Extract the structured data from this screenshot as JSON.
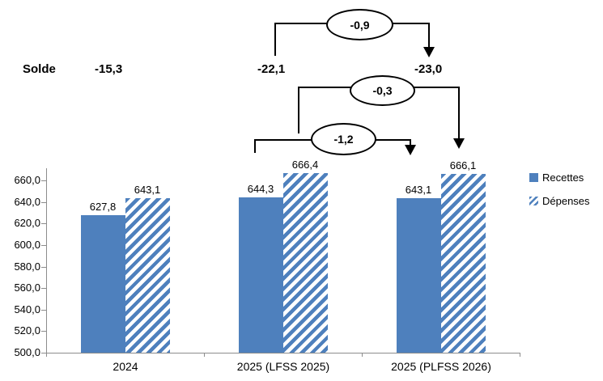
{
  "colors": {
    "bar_blue": "#4E80BD",
    "axis_gray": "#8C8C8C",
    "annotation_black": "#000000",
    "background": "#ffffff"
  },
  "solde_row": {
    "label": "Solde",
    "value_2024": "-15,3",
    "value_lfss_2025": "-22,1",
    "value_plfss_2026": "-23,0"
  },
  "annotations": {
    "solde_delta": "-0,9",
    "depenses_delta": "-0,3",
    "recettes_delta": "-1,2"
  },
  "chart_data": {
    "type": "bar",
    "title": "",
    "categories": [
      "2024",
      "2025 (LFSS 2025)",
      "2025 (PLFSS 2026)"
    ],
    "series": [
      {
        "name": "Recettes",
        "fill": "solid",
        "color": "#4E80BD",
        "values": [
          627.8,
          644.3,
          643.1
        ]
      },
      {
        "name": "Dépenses",
        "fill": "hatch",
        "color": "#4E80BD",
        "values": [
          643.1,
          666.4,
          666.1
        ]
      }
    ],
    "value_labels": [
      [
        "627,8",
        "644,3",
        "643,1"
      ],
      [
        "643,1",
        "666,4",
        "666,1"
      ]
    ],
    "ylim": [
      500,
      660
    ],
    "ytick_step": 20,
    "ytick_labels": [
      "500,0",
      "520,0",
      "540,0",
      "560,0",
      "580,0",
      "600,0",
      "620,0",
      "640,0",
      "660,0"
    ],
    "grid": false,
    "legend_position": "right",
    "solde": {
      "label": "Solde",
      "values": [
        -15.3,
        -22.1,
        -23.0
      ]
    },
    "deltas": {
      "solde": -0.9,
      "recettes": -1.2,
      "depenses": -0.3
    }
  }
}
